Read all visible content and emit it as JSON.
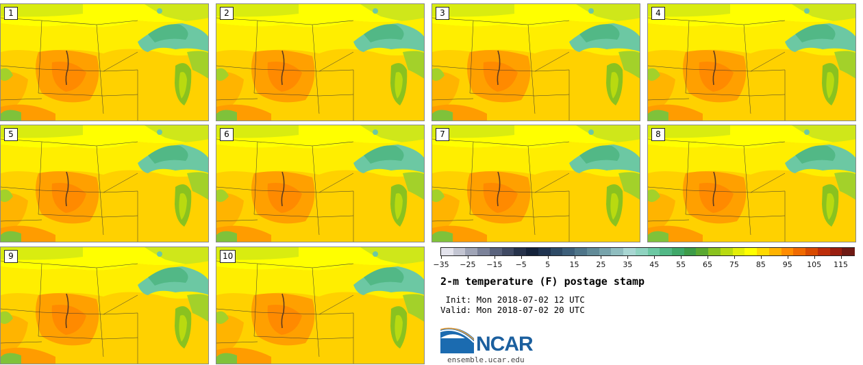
{
  "figure": {
    "title": "2-m temperature (F) postage stamp",
    "init": " Init: Mon 2018-07-02 12 UTC",
    "valid": "Valid: Mon 2018-07-02 20 UTC",
    "logo_brand": "NCAR",
    "logo_url": "ensemble.ucar.edu"
  },
  "members": [
    "1",
    "2",
    "3",
    "4",
    "5",
    "6",
    "7",
    "8",
    "9",
    "10"
  ],
  "colorbar": {
    "units": "F",
    "min": -35,
    "max": 120,
    "tick_labels": [
      "−35",
      "−25",
      "−15",
      "−5",
      "5",
      "15",
      "25",
      "35",
      "45",
      "55",
      "65",
      "75",
      "85",
      "95",
      "105",
      "115"
    ],
    "tick_values": [
      -35,
      -25,
      -15,
      -5,
      5,
      15,
      25,
      35,
      45,
      55,
      65,
      75,
      85,
      95,
      105,
      115
    ],
    "colors": [
      "#e3e3ec",
      "#c3c5d2",
      "#9fa4b6",
      "#7b8299",
      "#5a637d",
      "#3f4963",
      "#26324b",
      "#14223a",
      "#1f3350",
      "#2e4a66",
      "#3d5f7a",
      "#4f7589",
      "#628b98",
      "#77a3ab",
      "#8fbdbf",
      "#a8d6d2",
      "#8fd3c0",
      "#6cc8a3",
      "#52b886",
      "#3fa869",
      "#3d9b48",
      "#5aa831",
      "#8ac21f",
      "#b9da10",
      "#e3ee08",
      "#ffff00",
      "#ffd900",
      "#ffb300",
      "#ff8c00",
      "#f06a00",
      "#d84a00",
      "#bd2e0a",
      "#9a1e10",
      "#6f1a14"
    ]
  }
}
